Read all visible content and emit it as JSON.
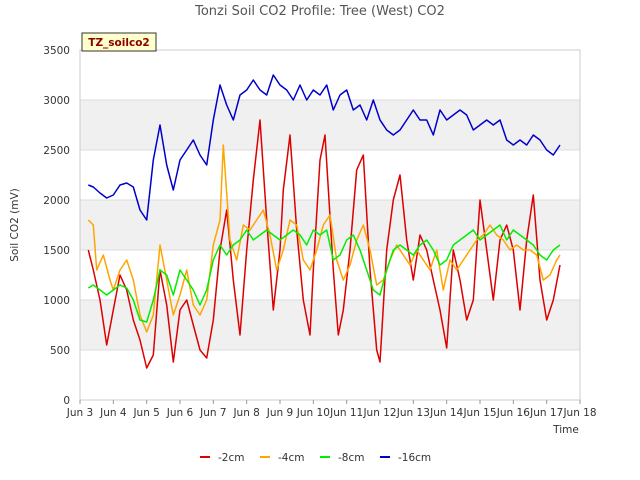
{
  "chart_data": {
    "type": "line",
    "title": "Tonzi Soil CO2 Profile: Tree (West) CO2",
    "xlabel": "Time",
    "ylabel": "Soil CO2 (mV)",
    "badge": "TZ_soilco2",
    "xlim": [
      3,
      18
    ],
    "ylim": [
      0,
      3500
    ],
    "x_ticks": [
      {
        "value": 3,
        "label": "Jun 3"
      },
      {
        "value": 4,
        "label": "Jun 4"
      },
      {
        "value": 5,
        "label": "Jun 5"
      },
      {
        "value": 6,
        "label": "Jun 6"
      },
      {
        "value": 7,
        "label": "Jun 7"
      },
      {
        "value": 8,
        "label": "Jun 8"
      },
      {
        "value": 9,
        "label": "Jun 9"
      },
      {
        "value": 10,
        "label": "Jun 10"
      },
      {
        "value": 11,
        "label": "Jun 11"
      },
      {
        "value": 12,
        "label": "Jun 12"
      },
      {
        "value": 13,
        "label": "Jun 13"
      },
      {
        "value": 14,
        "label": "Jun 14"
      },
      {
        "value": 15,
        "label": "Jun 15"
      },
      {
        "value": 16,
        "label": "Jun 16"
      },
      {
        "value": 17,
        "label": "Jun 17"
      },
      {
        "value": 18,
        "label": "Jun 18"
      }
    ],
    "y_ticks": [
      0,
      500,
      1000,
      1500,
      2000,
      2500,
      3000,
      3500
    ],
    "series": [
      {
        "name": "-2cm",
        "color": "#dd0000",
        "points": [
          [
            3.25,
            1500
          ],
          [
            3.4,
            1300
          ],
          [
            3.6,
            1000
          ],
          [
            3.8,
            550
          ],
          [
            4.0,
            900
          ],
          [
            4.2,
            1250
          ],
          [
            4.4,
            1100
          ],
          [
            4.6,
            800
          ],
          [
            4.8,
            600
          ],
          [
            5.0,
            320
          ],
          [
            5.2,
            450
          ],
          [
            5.4,
            1300
          ],
          [
            5.6,
            950
          ],
          [
            5.8,
            380
          ],
          [
            6.0,
            900
          ],
          [
            6.2,
            1000
          ],
          [
            6.4,
            750
          ],
          [
            6.6,
            500
          ],
          [
            6.8,
            420
          ],
          [
            7.0,
            800
          ],
          [
            7.2,
            1500
          ],
          [
            7.4,
            1900
          ],
          [
            7.6,
            1200
          ],
          [
            7.8,
            650
          ],
          [
            8.0,
            1500
          ],
          [
            8.2,
            2200
          ],
          [
            8.4,
            2800
          ],
          [
            8.6,
            1800
          ],
          [
            8.8,
            900
          ],
          [
            9.0,
            1500
          ],
          [
            9.1,
            2100
          ],
          [
            9.3,
            2650
          ],
          [
            9.5,
            1700
          ],
          [
            9.7,
            1000
          ],
          [
            9.9,
            650
          ],
          [
            10.0,
            1300
          ],
          [
            10.2,
            2400
          ],
          [
            10.35,
            2650
          ],
          [
            10.6,
            1300
          ],
          [
            10.75,
            650
          ],
          [
            10.9,
            900
          ],
          [
            11.1,
            1500
          ],
          [
            11.3,
            2300
          ],
          [
            11.5,
            2450
          ],
          [
            11.7,
            1300
          ],
          [
            11.9,
            500
          ],
          [
            12.0,
            380
          ],
          [
            12.2,
            1500
          ],
          [
            12.4,
            2000
          ],
          [
            12.6,
            2250
          ],
          [
            12.8,
            1600
          ],
          [
            13.0,
            1200
          ],
          [
            13.2,
            1650
          ],
          [
            13.4,
            1500
          ],
          [
            13.6,
            1200
          ],
          [
            13.8,
            900
          ],
          [
            14.0,
            520
          ],
          [
            14.2,
            1500
          ],
          [
            14.4,
            1200
          ],
          [
            14.6,
            800
          ],
          [
            14.8,
            1000
          ],
          [
            15.0,
            2000
          ],
          [
            15.2,
            1500
          ],
          [
            15.4,
            1000
          ],
          [
            15.6,
            1600
          ],
          [
            15.8,
            1750
          ],
          [
            16.0,
            1500
          ],
          [
            16.2,
            900
          ],
          [
            16.4,
            1600
          ],
          [
            16.6,
            2050
          ],
          [
            16.8,
            1200
          ],
          [
            17.0,
            800
          ],
          [
            17.2,
            1000
          ],
          [
            17.4,
            1350
          ]
        ]
      },
      {
        "name": "-4cm",
        "color": "#ffa500",
        "points": [
          [
            3.25,
            1800
          ],
          [
            3.4,
            1750
          ],
          [
            3.5,
            1300
          ],
          [
            3.7,
            1450
          ],
          [
            3.9,
            1200
          ],
          [
            4.0,
            1100
          ],
          [
            4.2,
            1300
          ],
          [
            4.4,
            1400
          ],
          [
            4.6,
            1200
          ],
          [
            4.8,
            850
          ],
          [
            5.0,
            680
          ],
          [
            5.2,
            850
          ],
          [
            5.4,
            1550
          ],
          [
            5.6,
            1200
          ],
          [
            5.8,
            850
          ],
          [
            6.0,
            1050
          ],
          [
            6.2,
            1300
          ],
          [
            6.4,
            950
          ],
          [
            6.6,
            850
          ],
          [
            6.8,
            1000
          ],
          [
            7.0,
            1550
          ],
          [
            7.2,
            1800
          ],
          [
            7.3,
            2550
          ],
          [
            7.5,
            1600
          ],
          [
            7.7,
            1400
          ],
          [
            7.9,
            1750
          ],
          [
            8.1,
            1700
          ],
          [
            8.3,
            1800
          ],
          [
            8.5,
            1900
          ],
          [
            8.7,
            1650
          ],
          [
            8.9,
            1300
          ],
          [
            9.1,
            1500
          ],
          [
            9.3,
            1800
          ],
          [
            9.5,
            1750
          ],
          [
            9.7,
            1400
          ],
          [
            9.9,
            1300
          ],
          [
            10.1,
            1500
          ],
          [
            10.3,
            1750
          ],
          [
            10.5,
            1850
          ],
          [
            10.7,
            1400
          ],
          [
            10.9,
            1200
          ],
          [
            11.1,
            1350
          ],
          [
            11.3,
            1600
          ],
          [
            11.5,
            1750
          ],
          [
            11.7,
            1500
          ],
          [
            11.9,
            1150
          ],
          [
            12.1,
            1200
          ],
          [
            12.3,
            1400
          ],
          [
            12.5,
            1550
          ],
          [
            12.7,
            1450
          ],
          [
            12.9,
            1350
          ],
          [
            13.1,
            1500
          ],
          [
            13.3,
            1400
          ],
          [
            13.5,
            1300
          ],
          [
            13.7,
            1500
          ],
          [
            13.9,
            1100
          ],
          [
            14.1,
            1400
          ],
          [
            14.3,
            1300
          ],
          [
            14.5,
            1400
          ],
          [
            14.7,
            1500
          ],
          [
            14.9,
            1600
          ],
          [
            15.1,
            1650
          ],
          [
            15.3,
            1750
          ],
          [
            15.5,
            1650
          ],
          [
            15.7,
            1600
          ],
          [
            15.9,
            1500
          ],
          [
            16.1,
            1550
          ],
          [
            16.3,
            1500
          ],
          [
            16.5,
            1500
          ],
          [
            16.7,
            1450
          ],
          [
            16.9,
            1200
          ],
          [
            17.1,
            1250
          ],
          [
            17.3,
            1400
          ],
          [
            17.4,
            1450
          ]
        ]
      },
      {
        "name": "-8cm",
        "color": "#00ee00",
        "points": [
          [
            3.25,
            1120
          ],
          [
            3.4,
            1150
          ],
          [
            3.6,
            1100
          ],
          [
            3.8,
            1050
          ],
          [
            4.0,
            1100
          ],
          [
            4.2,
            1150
          ],
          [
            4.4,
            1120
          ],
          [
            4.6,
            1000
          ],
          [
            4.8,
            800
          ],
          [
            5.0,
            780
          ],
          [
            5.2,
            1000
          ],
          [
            5.4,
            1300
          ],
          [
            5.6,
            1250
          ],
          [
            5.8,
            1050
          ],
          [
            6.0,
            1300
          ],
          [
            6.2,
            1200
          ],
          [
            6.4,
            1100
          ],
          [
            6.6,
            950
          ],
          [
            6.8,
            1100
          ],
          [
            7.0,
            1400
          ],
          [
            7.2,
            1550
          ],
          [
            7.4,
            1450
          ],
          [
            7.6,
            1550
          ],
          [
            7.8,
            1600
          ],
          [
            8.0,
            1700
          ],
          [
            8.2,
            1600
          ],
          [
            8.4,
            1650
          ],
          [
            8.6,
            1700
          ],
          [
            8.8,
            1650
          ],
          [
            9.0,
            1600
          ],
          [
            9.2,
            1650
          ],
          [
            9.4,
            1700
          ],
          [
            9.6,
            1650
          ],
          [
            9.8,
            1550
          ],
          [
            10.0,
            1700
          ],
          [
            10.2,
            1650
          ],
          [
            10.4,
            1700
          ],
          [
            10.6,
            1400
          ],
          [
            10.8,
            1450
          ],
          [
            11.0,
            1600
          ],
          [
            11.2,
            1650
          ],
          [
            11.4,
            1500
          ],
          [
            11.6,
            1300
          ],
          [
            11.8,
            1100
          ],
          [
            12.0,
            1050
          ],
          [
            12.2,
            1300
          ],
          [
            12.4,
            1500
          ],
          [
            12.6,
            1550
          ],
          [
            12.8,
            1500
          ],
          [
            13.0,
            1450
          ],
          [
            13.2,
            1550
          ],
          [
            13.4,
            1600
          ],
          [
            13.6,
            1500
          ],
          [
            13.8,
            1350
          ],
          [
            14.0,
            1400
          ],
          [
            14.2,
            1550
          ],
          [
            14.4,
            1600
          ],
          [
            14.6,
            1650
          ],
          [
            14.8,
            1700
          ],
          [
            15.0,
            1600
          ],
          [
            15.2,
            1650
          ],
          [
            15.4,
            1700
          ],
          [
            15.6,
            1750
          ],
          [
            15.8,
            1600
          ],
          [
            16.0,
            1700
          ],
          [
            16.2,
            1650
          ],
          [
            16.4,
            1600
          ],
          [
            16.6,
            1550
          ],
          [
            16.8,
            1450
          ],
          [
            17.0,
            1400
          ],
          [
            17.2,
            1500
          ],
          [
            17.4,
            1550
          ]
        ]
      },
      {
        "name": "-16cm",
        "color": "#0000cc",
        "points": [
          [
            3.25,
            2150
          ],
          [
            3.4,
            2130
          ],
          [
            3.6,
            2070
          ],
          [
            3.8,
            2020
          ],
          [
            4.0,
            2050
          ],
          [
            4.2,
            2150
          ],
          [
            4.4,
            2170
          ],
          [
            4.6,
            2130
          ],
          [
            4.8,
            1900
          ],
          [
            5.0,
            1800
          ],
          [
            5.2,
            2400
          ],
          [
            5.4,
            2750
          ],
          [
            5.6,
            2350
          ],
          [
            5.8,
            2100
          ],
          [
            6.0,
            2400
          ],
          [
            6.2,
            2500
          ],
          [
            6.4,
            2600
          ],
          [
            6.6,
            2450
          ],
          [
            6.8,
            2350
          ],
          [
            7.0,
            2800
          ],
          [
            7.2,
            3150
          ],
          [
            7.4,
            2950
          ],
          [
            7.6,
            2800
          ],
          [
            7.8,
            3050
          ],
          [
            8.0,
            3100
          ],
          [
            8.2,
            3200
          ],
          [
            8.4,
            3100
          ],
          [
            8.6,
            3050
          ],
          [
            8.8,
            3250
          ],
          [
            9.0,
            3150
          ],
          [
            9.2,
            3100
          ],
          [
            9.4,
            3000
          ],
          [
            9.6,
            3150
          ],
          [
            9.8,
            3000
          ],
          [
            10.0,
            3100
          ],
          [
            10.2,
            3050
          ],
          [
            10.4,
            3150
          ],
          [
            10.6,
            2900
          ],
          [
            10.8,
            3050
          ],
          [
            11.0,
            3100
          ],
          [
            11.2,
            2900
          ],
          [
            11.4,
            2950
          ],
          [
            11.6,
            2800
          ],
          [
            11.8,
            3000
          ],
          [
            12.0,
            2800
          ],
          [
            12.2,
            2700
          ],
          [
            12.4,
            2650
          ],
          [
            12.6,
            2700
          ],
          [
            12.8,
            2800
          ],
          [
            13.0,
            2900
          ],
          [
            13.2,
            2800
          ],
          [
            13.4,
            2800
          ],
          [
            13.6,
            2650
          ],
          [
            13.8,
            2900
          ],
          [
            14.0,
            2800
          ],
          [
            14.2,
            2850
          ],
          [
            14.4,
            2900
          ],
          [
            14.6,
            2850
          ],
          [
            14.8,
            2700
          ],
          [
            15.0,
            2750
          ],
          [
            15.2,
            2800
          ],
          [
            15.4,
            2750
          ],
          [
            15.6,
            2800
          ],
          [
            15.8,
            2600
          ],
          [
            16.0,
            2550
          ],
          [
            16.2,
            2600
          ],
          [
            16.4,
            2550
          ],
          [
            16.6,
            2650
          ],
          [
            16.8,
            2600
          ],
          [
            17.0,
            2500
          ],
          [
            17.2,
            2450
          ],
          [
            17.4,
            2550
          ]
        ]
      }
    ]
  }
}
